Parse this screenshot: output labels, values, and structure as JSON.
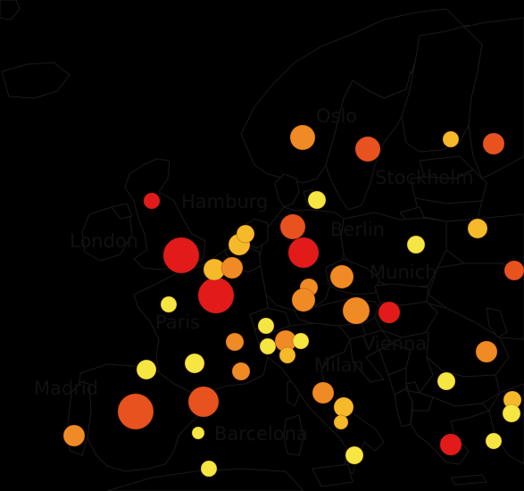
{
  "map": {
    "colors": {
      "water": "#ffffff",
      "outline": "#1a1a1a",
      "choropleth": {
        "very_light": "#cfd3e6",
        "light": "#9fb6d8",
        "mid": "#5b95cf",
        "strong": "#3477bd",
        "dark": "#0f63ad"
      },
      "bubble_scale": [
        "#f5e642",
        "#f5b92a",
        "#f08a24",
        "#e8521f",
        "#e21a1a"
      ]
    },
    "labels": {
      "oslo": "Oslo",
      "stockholm": "Stockholm",
      "hamburg": "Hamburg",
      "berlin": "Berlin",
      "london": "London",
      "munich": "Munich",
      "paris": "Paris",
      "vienna": "Vienna",
      "milan": "Milan",
      "madrid": "Madrid",
      "barcelona": "Barcelona"
    }
  }
}
